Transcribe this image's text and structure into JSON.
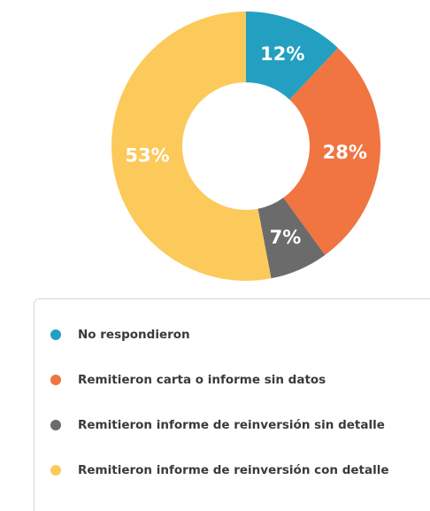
{
  "chart_data": {
    "type": "pie",
    "categories": [
      "No respondieron",
      "Remitieron carta o informe sin datos",
      "Remitieron informe de reinversión sin detalle",
      "Remitieron informe de reinversión con detalle"
    ],
    "values": [
      12,
      28,
      7,
      53
    ],
    "value_labels": [
      "12%",
      "28%",
      "7%",
      "53%"
    ],
    "colors": [
      "#23a0c1",
      "#f07541",
      "#6b6b6b",
      "#fcc95b"
    ],
    "donut": true
  }
}
